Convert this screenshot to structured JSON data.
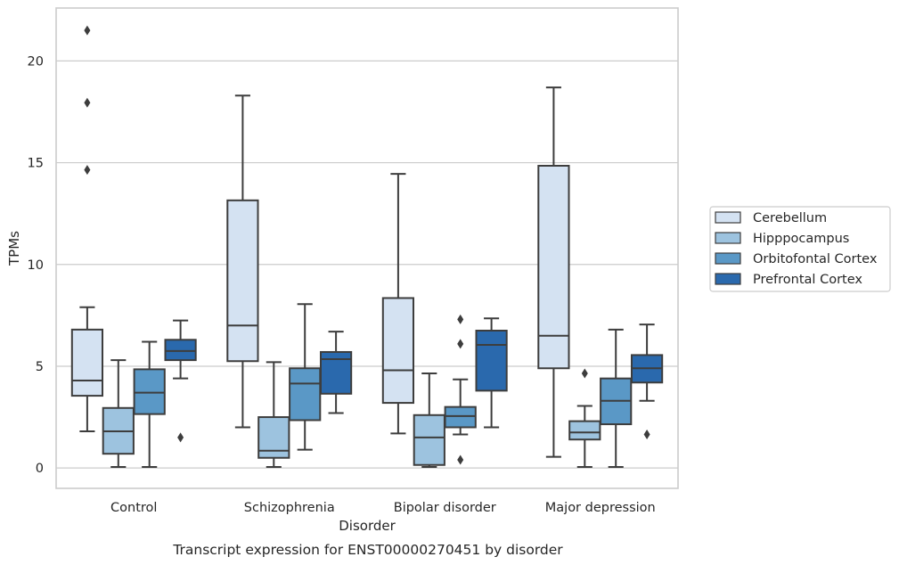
{
  "chart_data": {
    "type": "box",
    "title": "Transcript expression for ENST00000270451 by disorder",
    "xlabel": "Disorder",
    "ylabel": "TPMs",
    "ylim": [
      -1,
      22.6
    ],
    "yticks": [
      0,
      5,
      10,
      15,
      20
    ],
    "grid": true,
    "legend_position": "right",
    "categories": [
      "Control",
      "Schizophrenia",
      "Bipolar disorder",
      "Major depression"
    ],
    "series": [
      {
        "name": "Cerebellum",
        "color": "#d4e2f2",
        "boxes": [
          {
            "whisker_low": 1.8,
            "q1": 3.55,
            "median": 4.3,
            "q3": 6.8,
            "whisker_high": 7.9,
            "outliers": [
              14.65,
              17.95,
              21.5
            ]
          },
          {
            "whisker_low": 2.0,
            "q1": 5.25,
            "median": 7.0,
            "q3": 13.15,
            "whisker_high": 18.3,
            "outliers": []
          },
          {
            "whisker_low": 1.7,
            "q1": 3.2,
            "median": 4.8,
            "q3": 8.35,
            "whisker_high": 14.45,
            "outliers": []
          },
          {
            "whisker_low": 0.55,
            "q1": 4.9,
            "median": 6.5,
            "q3": 14.85,
            "whisker_high": 18.7,
            "outliers": []
          }
        ]
      },
      {
        "name": "Hipppocampus",
        "color": "#9dc3df",
        "boxes": [
          {
            "whisker_low": 0.05,
            "q1": 0.7,
            "median": 1.8,
            "q3": 2.95,
            "whisker_high": 5.3,
            "outliers": []
          },
          {
            "whisker_low": 0.05,
            "q1": 0.5,
            "median": 0.85,
            "q3": 2.5,
            "whisker_high": 5.2,
            "outliers": []
          },
          {
            "whisker_low": 0.05,
            "q1": 0.15,
            "median": 1.5,
            "q3": 2.6,
            "whisker_high": 4.65,
            "outliers": []
          },
          {
            "whisker_low": 0.05,
            "q1": 1.4,
            "median": 1.75,
            "q3": 2.3,
            "whisker_high": 3.05,
            "outliers": [
              4.65
            ]
          }
        ]
      },
      {
        "name": "Orbitofontal Cortex",
        "color": "#5a98c6",
        "boxes": [
          {
            "whisker_low": 0.05,
            "q1": 2.65,
            "median": 3.7,
            "q3": 4.85,
            "whisker_high": 6.2,
            "outliers": []
          },
          {
            "whisker_low": 0.9,
            "q1": 2.35,
            "median": 4.15,
            "q3": 4.9,
            "whisker_high": 8.05,
            "outliers": []
          },
          {
            "whisker_low": 1.65,
            "q1": 2.0,
            "median": 2.55,
            "q3": 3.0,
            "whisker_high": 4.35,
            "outliers": [
              0.4,
              6.1,
              7.3
            ]
          },
          {
            "whisker_low": 0.05,
            "q1": 2.15,
            "median": 3.3,
            "q3": 4.4,
            "whisker_high": 6.8,
            "outliers": []
          }
        ]
      },
      {
        "name": "Prefrontal Cortex",
        "color": "#2a69ad",
        "boxes": [
          {
            "whisker_low": 4.4,
            "q1": 5.3,
            "median": 5.75,
            "q3": 6.3,
            "whisker_high": 7.25,
            "outliers": [
              1.5
            ]
          },
          {
            "whisker_low": 2.7,
            "q1": 3.65,
            "median": 5.35,
            "q3": 5.7,
            "whisker_high": 6.7,
            "outliers": []
          },
          {
            "whisker_low": 2.0,
            "q1": 3.8,
            "median": 6.05,
            "q3": 6.75,
            "whisker_high": 7.35,
            "outliers": []
          },
          {
            "whisker_low": 3.3,
            "q1": 4.2,
            "median": 4.9,
            "q3": 5.55,
            "whisker_high": 7.05,
            "outliers": [
              1.65
            ]
          }
        ]
      }
    ]
  }
}
